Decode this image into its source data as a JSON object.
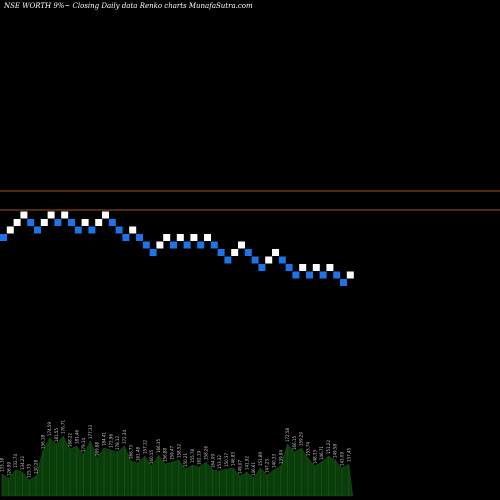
{
  "title": "NSE WORTH 9%~  Closing Daily data  Renko  charts MunafaSutra.com",
  "chart_data": {
    "type": "renko",
    "series": "Closing Daily data",
    "reference_lines": [
      "upper",
      "lower"
    ],
    "colors": {
      "up": "#ffffff",
      "down": "#1e73e8",
      "lines": "#a0521e",
      "volume": "#0b3d0b"
    },
    "bricks": [
      {
        "level": 16,
        "dir": "down"
      },
      {
        "level": 17,
        "dir": "up"
      },
      {
        "level": 18,
        "dir": "up"
      },
      {
        "level": 19,
        "dir": "up"
      },
      {
        "level": 18,
        "dir": "down"
      },
      {
        "level": 17,
        "dir": "down"
      },
      {
        "level": 18,
        "dir": "up"
      },
      {
        "level": 19,
        "dir": "up"
      },
      {
        "level": 18,
        "dir": "down"
      },
      {
        "level": 19,
        "dir": "up"
      },
      {
        "level": 18,
        "dir": "down"
      },
      {
        "level": 17,
        "dir": "down"
      },
      {
        "level": 18,
        "dir": "up"
      },
      {
        "level": 17,
        "dir": "down"
      },
      {
        "level": 18,
        "dir": "up"
      },
      {
        "level": 19,
        "dir": "up"
      },
      {
        "level": 18,
        "dir": "down"
      },
      {
        "level": 17,
        "dir": "down"
      },
      {
        "level": 16,
        "dir": "down"
      },
      {
        "level": 17,
        "dir": "up"
      },
      {
        "level": 16,
        "dir": "down"
      },
      {
        "level": 15,
        "dir": "down"
      },
      {
        "level": 14,
        "dir": "down"
      },
      {
        "level": 15,
        "dir": "up"
      },
      {
        "level": 16,
        "dir": "up"
      },
      {
        "level": 15,
        "dir": "down"
      },
      {
        "level": 16,
        "dir": "up"
      },
      {
        "level": 15,
        "dir": "down"
      },
      {
        "level": 16,
        "dir": "up"
      },
      {
        "level": 15,
        "dir": "down"
      },
      {
        "level": 16,
        "dir": "up"
      },
      {
        "level": 15,
        "dir": "down"
      },
      {
        "level": 14,
        "dir": "down"
      },
      {
        "level": 13,
        "dir": "down"
      },
      {
        "level": 14,
        "dir": "up"
      },
      {
        "level": 15,
        "dir": "up"
      },
      {
        "level": 14,
        "dir": "down"
      },
      {
        "level": 13,
        "dir": "down"
      },
      {
        "level": 12,
        "dir": "down"
      },
      {
        "level": 13,
        "dir": "up"
      },
      {
        "level": 14,
        "dir": "up"
      },
      {
        "level": 13,
        "dir": "down"
      },
      {
        "level": 12,
        "dir": "down"
      },
      {
        "level": 11,
        "dir": "down"
      },
      {
        "level": 12,
        "dir": "up"
      },
      {
        "level": 11,
        "dir": "down"
      },
      {
        "level": 12,
        "dir": "up"
      },
      {
        "level": 11,
        "dir": "down"
      },
      {
        "level": 12,
        "dir": "up"
      },
      {
        "level": 11,
        "dir": "down"
      },
      {
        "level": 10,
        "dir": "down"
      },
      {
        "level": 11,
        "dir": "up"
      }
    ],
    "volume": [
      {
        "label": "133.18",
        "value": 22
      },
      {
        "label": "126.99",
        "value": 18
      },
      {
        "label": "132.74",
        "value": 26
      },
      {
        "label": "134.22",
        "value": 24
      },
      {
        "label": "125.73",
        "value": 16
      },
      {
        "label": "130.28",
        "value": 20
      },
      {
        "label": "136.18",
        "value": 45
      },
      {
        "label": "174.59",
        "value": 58
      },
      {
        "label": "181.55",
        "value": 52
      },
      {
        "label": "176.71",
        "value": 60
      },
      {
        "label": "168.22",
        "value": 47
      },
      {
        "label": "181.46",
        "value": 50
      },
      {
        "label": "179.14",
        "value": 42
      },
      {
        "label": "177.33",
        "value": 55
      },
      {
        "label": "169.88",
        "value": 38
      },
      {
        "label": "184.41",
        "value": 48
      },
      {
        "label": "172.96",
        "value": 46
      },
      {
        "label": "178.12",
        "value": 44
      },
      {
        "label": "172.34",
        "value": 50
      },
      {
        "label": "166.73",
        "value": 35
      },
      {
        "label": "161.48",
        "value": 33
      },
      {
        "label": "157.12",
        "value": 40
      },
      {
        "label": "160.15",
        "value": 30
      },
      {
        "label": "166.35",
        "value": 41
      },
      {
        "label": "156.88",
        "value": 32
      },
      {
        "label": "159.47",
        "value": 34
      },
      {
        "label": "158.52",
        "value": 36
      },
      {
        "label": "150.21",
        "value": 27
      },
      {
        "label": "155.78",
        "value": 31
      },
      {
        "label": "162.19",
        "value": 29
      },
      {
        "label": "158.26",
        "value": 34
      },
      {
        "label": "164.09",
        "value": 26
      },
      {
        "label": "153.32",
        "value": 25
      },
      {
        "label": "150.37",
        "value": 27
      },
      {
        "label": "146.83",
        "value": 28
      },
      {
        "label": "149.07",
        "value": 20
      },
      {
        "label": "141.92",
        "value": 24
      },
      {
        "label": "146.61",
        "value": 18
      },
      {
        "label": "151.89",
        "value": 28
      },
      {
        "label": "147.25",
        "value": 21
      },
      {
        "label": "140.33",
        "value": 26
      },
      {
        "label": "139.84",
        "value": 30
      },
      {
        "label": "172.58",
        "value": 52
      },
      {
        "label": "166.15",
        "value": 44
      },
      {
        "label": "159.20",
        "value": 48
      },
      {
        "label": "155.74",
        "value": 38
      },
      {
        "label": "148.33",
        "value": 30
      },
      {
        "label": "146.71",
        "value": 34
      },
      {
        "label": "151.22",
        "value": 40
      },
      {
        "label": "149.58",
        "value": 36
      },
      {
        "label": "143.09",
        "value": 28
      },
      {
        "label": "137.45",
        "value": 32
      }
    ]
  }
}
